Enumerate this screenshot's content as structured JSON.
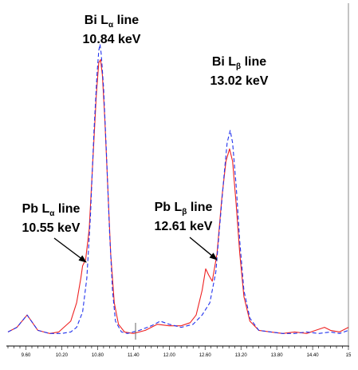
{
  "chart_data": {
    "type": "line",
    "title": "",
    "xlabel": "",
    "ylabel": "",
    "grid": false,
    "legend": "none",
    "xlim": [
      9.3,
      15.0
    ],
    "ylim": [
      0,
      100
    ],
    "x_ticks": [
      {
        "value": 9.6,
        "label": "9.60"
      },
      {
        "value": 10.2,
        "label": "10.20"
      },
      {
        "value": 10.8,
        "label": "10.80"
      },
      {
        "value": 11.4,
        "label": "11.40"
      },
      {
        "value": 12.0,
        "label": "12.00"
      },
      {
        "value": 12.6,
        "label": "12.60"
      },
      {
        "value": 13.2,
        "label": "13.20"
      },
      {
        "value": 13.8,
        "label": "13.80"
      },
      {
        "value": 14.4,
        "label": "14.40"
      },
      {
        "value": 15.0,
        "label": "15"
      }
    ],
    "series": [
      {
        "color": "#2233ee",
        "style": "dashed",
        "points": [
          [
            9.3,
            2.5
          ],
          [
            9.45,
            4
          ],
          [
            9.62,
            8
          ],
          [
            9.8,
            3
          ],
          [
            10.0,
            2
          ],
          [
            10.2,
            2
          ],
          [
            10.35,
            2.5
          ],
          [
            10.45,
            4
          ],
          [
            10.55,
            9
          ],
          [
            10.62,
            20
          ],
          [
            10.68,
            40
          ],
          [
            10.74,
            68
          ],
          [
            10.79,
            86
          ],
          [
            10.82,
            94
          ],
          [
            10.84,
            96
          ],
          [
            10.86,
            93
          ],
          [
            10.9,
            82
          ],
          [
            10.95,
            60
          ],
          [
            11.0,
            35
          ],
          [
            11.05,
            16
          ],
          [
            11.1,
            6
          ],
          [
            11.2,
            2.5
          ],
          [
            11.3,
            2
          ],
          [
            11.5,
            3
          ],
          [
            11.7,
            4.5
          ],
          [
            11.85,
            6
          ],
          [
            12.0,
            5
          ],
          [
            12.2,
            4
          ],
          [
            12.4,
            5
          ],
          [
            12.55,
            8
          ],
          [
            12.68,
            12
          ],
          [
            12.78,
            22
          ],
          [
            12.85,
            38
          ],
          [
            12.92,
            54
          ],
          [
            12.97,
            64
          ],
          [
            13.02,
            68
          ],
          [
            13.06,
            64
          ],
          [
            13.12,
            50
          ],
          [
            13.18,
            32
          ],
          [
            13.25,
            16
          ],
          [
            13.35,
            7
          ],
          [
            13.5,
            3
          ],
          [
            13.7,
            2.5
          ],
          [
            13.9,
            2
          ],
          [
            14.1,
            2
          ],
          [
            14.3,
            2.5
          ],
          [
            14.5,
            2
          ],
          [
            14.7,
            2.5
          ],
          [
            14.85,
            2
          ],
          [
            15.0,
            3
          ]
        ]
      },
      {
        "color": "#ee2222",
        "style": "solid",
        "points": [
          [
            9.3,
            2.5
          ],
          [
            9.45,
            4
          ],
          [
            9.62,
            8
          ],
          [
            9.8,
            3
          ],
          [
            10.0,
            2
          ],
          [
            10.15,
            2.5
          ],
          [
            10.35,
            6
          ],
          [
            10.45,
            12
          ],
          [
            10.52,
            20
          ],
          [
            10.55,
            24
          ],
          [
            10.6,
            26
          ],
          [
            10.66,
            36
          ],
          [
            10.72,
            58
          ],
          [
            10.78,
            80
          ],
          [
            10.82,
            90
          ],
          [
            10.85,
            91
          ],
          [
            10.88,
            86
          ],
          [
            10.92,
            72
          ],
          [
            10.97,
            50
          ],
          [
            11.02,
            28
          ],
          [
            11.08,
            12
          ],
          [
            11.15,
            5
          ],
          [
            11.25,
            2.5
          ],
          [
            11.4,
            2
          ],
          [
            11.6,
            3
          ],
          [
            11.8,
            5
          ],
          [
            12.0,
            4.5
          ],
          [
            12.2,
            4.5
          ],
          [
            12.35,
            5.5
          ],
          [
            12.45,
            8
          ],
          [
            12.55,
            16
          ],
          [
            12.61,
            23
          ],
          [
            12.66,
            21
          ],
          [
            12.72,
            19
          ],
          [
            12.8,
            28
          ],
          [
            12.88,
            46
          ],
          [
            12.95,
            58
          ],
          [
            13.01,
            62
          ],
          [
            13.06,
            58
          ],
          [
            13.12,
            44
          ],
          [
            13.18,
            28
          ],
          [
            13.25,
            14
          ],
          [
            13.35,
            6
          ],
          [
            13.5,
            3
          ],
          [
            13.7,
            2.5
          ],
          [
            13.9,
            2
          ],
          [
            14.1,
            2.5
          ],
          [
            14.3,
            2
          ],
          [
            14.45,
            3
          ],
          [
            14.6,
            4
          ],
          [
            14.7,
            3
          ],
          [
            14.85,
            2.5
          ],
          [
            15.0,
            4
          ]
        ]
      }
    ],
    "annotations": [
      {
        "name": "bi-la",
        "element": "Bi L",
        "subscript": "α",
        "suffix": " line",
        "energy": "10.84 keV"
      },
      {
        "name": "bi-lb",
        "element": "Bi L",
        "subscript": "β",
        "suffix": " line",
        "energy": "13.02 keV"
      },
      {
        "name": "pb-la",
        "element": "Pb L",
        "subscript": "α",
        "suffix": " line",
        "energy": "10.55 keV"
      },
      {
        "name": "pb-lb",
        "element": "Pb L",
        "subscript": "β",
        "suffix": " line",
        "energy": "12.61 keV"
      }
    ]
  }
}
